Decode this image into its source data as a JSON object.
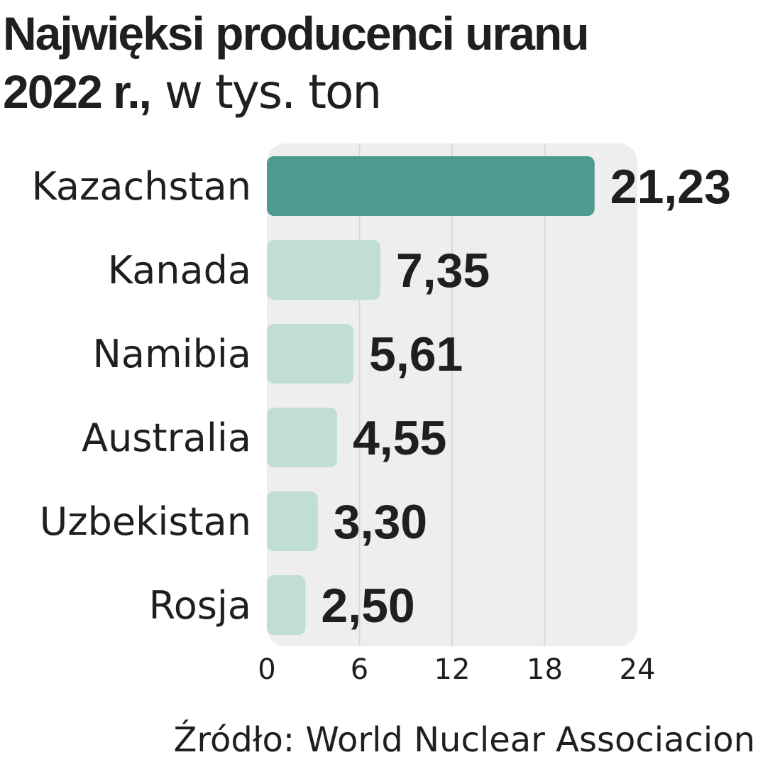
{
  "title": {
    "line1": "Najwięksi producenci uranu",
    "line2_bold": "2022 r.,",
    "line2_light": "w tys. ton"
  },
  "source": "Źródło: World Nuclear Associacion",
  "colors": {
    "highlight": "#4f9a8e",
    "bar": "#c0ded6",
    "plot_bg": "#efeeee",
    "grid": "#d9d9d9",
    "text": "#1f1f1f"
  },
  "chart_data": {
    "type": "bar",
    "orientation": "horizontal",
    "title": "Najwięksi producenci uranu 2022 r., w tys. ton",
    "categories": [
      "Kazachstan",
      "Kanada",
      "Namibia",
      "Australia",
      "Uzbekistan",
      "Rosja"
    ],
    "values": [
      21.23,
      7.35,
      5.61,
      4.55,
      3.3,
      2.5
    ],
    "value_labels": [
      "21,23",
      "7,35",
      "5,61",
      "4,55",
      "3,30",
      "2,50"
    ],
    "highlighted_category": "Kazachstan",
    "xlim": [
      0,
      24
    ],
    "xticks": [
      "0",
      "6",
      "12",
      "18",
      "24"
    ],
    "grid": true,
    "legend": "none"
  }
}
